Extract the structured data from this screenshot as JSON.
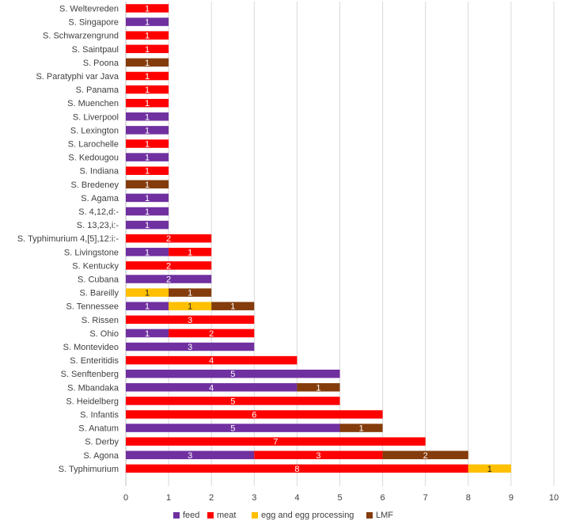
{
  "chart_data": {
    "type": "bar",
    "orientation": "horizontal",
    "stacked": true,
    "categories": [
      "S. Weltevreden",
      "S. Singapore",
      "S. Schwarzengrund",
      "S. Saintpaul",
      "S. Poona",
      "S. Paratyphi var Java",
      "S. Panama",
      "S. Muenchen",
      "S. Liverpool",
      "S. Lexington",
      "S. Larochelle",
      "S. Kedougou",
      "S. Indiana",
      "S. Bredeney",
      "S. Agama",
      "S. 4,12,d:-",
      "S. 13,23,i:-",
      "S. Typhimurium 4,[5],12:i:-",
      "S. Livingstone",
      "S. Kentucky",
      "S. Cubana",
      "S. Bareilly",
      "S. Tennessee",
      "S. Rissen",
      "S. Ohio",
      "S. Montevideo",
      "S. Enteritidis",
      "S. Senftenberg",
      "S. Mbandaka",
      "S. Heidelberg",
      "S. Infantis",
      "S. Anatum",
      "S. Derby",
      "S. Agona",
      "S. Typhimurium"
    ],
    "series": [
      {
        "name": "feed",
        "color": "#7030a0",
        "values": [
          0,
          1,
          0,
          0,
          0,
          0,
          0,
          0,
          1,
          1,
          0,
          1,
          0,
          0,
          1,
          1,
          1,
          0,
          1,
          0,
          2,
          0,
          1,
          0,
          1,
          3,
          0,
          5,
          4,
          0,
          0,
          5,
          0,
          3,
          0
        ]
      },
      {
        "name": "meat",
        "color": "#ff0000",
        "values": [
          1,
          0,
          1,
          1,
          0,
          1,
          1,
          1,
          0,
          0,
          1,
          0,
          1,
          0,
          0,
          0,
          0,
          2,
          1,
          2,
          0,
          0,
          0,
          3,
          2,
          0,
          4,
          0,
          0,
          5,
          6,
          0,
          7,
          3,
          8
        ]
      },
      {
        "name": "egg and egg processing",
        "color": "#ffc000",
        "values": [
          0,
          0,
          0,
          0,
          0,
          0,
          0,
          0,
          0,
          0,
          0,
          0,
          0,
          0,
          0,
          0,
          0,
          0,
          0,
          0,
          0,
          1,
          1,
          0,
          0,
          0,
          0,
          0,
          0,
          0,
          0,
          0,
          0,
          0,
          1
        ]
      },
      {
        "name": "LMF",
        "color": "#843c0c",
        "values": [
          0,
          0,
          0,
          0,
          1,
          0,
          0,
          0,
          0,
          0,
          0,
          0,
          0,
          1,
          0,
          0,
          0,
          0,
          0,
          0,
          0,
          1,
          1,
          0,
          0,
          0,
          0,
          0,
          1,
          0,
          0,
          1,
          0,
          2,
          0
        ]
      }
    ],
    "xlim": [
      0,
      10
    ],
    "xticks": [
      "0",
      "1",
      "2",
      "3",
      "4",
      "5",
      "6",
      "7",
      "8",
      "9",
      "10"
    ],
    "grid": true,
    "legend_position": "bottom",
    "data_labels": true,
    "title": "",
    "xlabel": "",
    "ylabel": ""
  }
}
